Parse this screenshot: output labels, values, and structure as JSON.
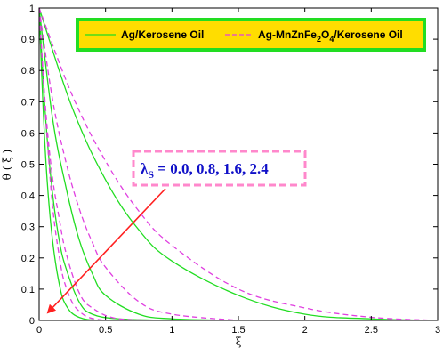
{
  "chart_data": {
    "type": "line",
    "xlabel": "ξ",
    "ylabel": "θ ( ξ )",
    "xlim": [
      0,
      3
    ],
    "ylim": [
      0,
      1
    ],
    "x_ticks": [
      "0",
      "0.5",
      "1",
      "1.5",
      "2",
      "2.5",
      "3"
    ],
    "y_ticks": [
      "0",
      "0.1",
      "0.2",
      "0.3",
      "0.4",
      "0.5",
      "0.6",
      "0.7",
      "0.8",
      "0.9",
      "1"
    ],
    "grid": false,
    "legend_position": "top",
    "legend": {
      "entry1": {
        "label": "Ag/Kerosene Oil",
        "color": "#22dd22",
        "style": "solid"
      },
      "entry2_parts": {
        "a": "Ag-MnZnFe",
        "b": "2",
        "c": "O",
        "d": "4",
        "e": "/Kerosene Oil"
      },
      "entry2_color": "#e040e0",
      "entry2_style": "dashed",
      "box_border_color": "#22dd22",
      "box_fill_color": "#ffdd00"
    },
    "annotation": {
      "symbol": "λ",
      "subscript": "S",
      "values_text": " = 0.0, 0.8, 1.6, 2.4",
      "arrow_color": "#ff2020",
      "box_border_color": "#ff88cc"
    },
    "series": [
      {
        "group": "Ag/Kerosene Oil",
        "color": "#22dd22",
        "style": "solid",
        "lambda_s": 0.0,
        "x": [
          0,
          0.25,
          0.5,
          0.75,
          1.0,
          1.5,
          2.0,
          2.5,
          3.0
        ],
        "y": [
          1.0,
          0.68,
          0.45,
          0.29,
          0.19,
          0.08,
          0.02,
          0.005,
          0.0
        ]
      },
      {
        "group": "Ag/Kerosene Oil",
        "color": "#22dd22",
        "style": "solid",
        "lambda_s": 0.8,
        "x": [
          0,
          0.1,
          0.2,
          0.3,
          0.4,
          0.5,
          0.75,
          1.0,
          1.5
        ],
        "y": [
          1.0,
          0.65,
          0.43,
          0.26,
          0.15,
          0.08,
          0.02,
          0.005,
          0.0
        ]
      },
      {
        "group": "Ag/Kerosene Oil",
        "color": "#22dd22",
        "style": "solid",
        "lambda_s": 1.6,
        "x": [
          0,
          0.05,
          0.1,
          0.15,
          0.2,
          0.3,
          0.4,
          0.6,
          1.0
        ],
        "y": [
          1.0,
          0.64,
          0.41,
          0.26,
          0.17,
          0.06,
          0.02,
          0.005,
          0.0
        ]
      },
      {
        "group": "Ag/Kerosene Oil",
        "color": "#22dd22",
        "style": "solid",
        "lambda_s": 2.4,
        "x": [
          0,
          0.03,
          0.06,
          0.1,
          0.15,
          0.2,
          0.3,
          0.5,
          1.0
        ],
        "y": [
          1.0,
          0.68,
          0.45,
          0.26,
          0.12,
          0.05,
          0.01,
          0.0,
          0.0
        ]
      },
      {
        "group": "Ag-MnZnFe2O4/Kerosene Oil",
        "color": "#e040e0",
        "style": "dashed",
        "lambda_s": 0.0,
        "x": [
          0,
          0.25,
          0.5,
          0.75,
          1.0,
          1.5,
          2.0,
          2.5,
          3.0
        ],
        "y": [
          1.0,
          0.72,
          0.51,
          0.35,
          0.24,
          0.1,
          0.04,
          0.01,
          0.0
        ]
      },
      {
        "group": "Ag-MnZnFe2O4/Kerosene Oil",
        "color": "#e040e0",
        "style": "dashed",
        "lambda_s": 0.8,
        "x": [
          0,
          0.1,
          0.2,
          0.3,
          0.4,
          0.5,
          0.75,
          1.0,
          1.5
        ],
        "y": [
          1.0,
          0.71,
          0.51,
          0.36,
          0.25,
          0.17,
          0.06,
          0.02,
          0.0
        ]
      },
      {
        "group": "Ag-MnZnFe2O4/Kerosene Oil",
        "color": "#e040e0",
        "style": "dashed",
        "lambda_s": 1.6,
        "x": [
          0,
          0.05,
          0.1,
          0.15,
          0.2,
          0.3,
          0.4,
          0.6,
          1.0
        ],
        "y": [
          1.0,
          0.67,
          0.46,
          0.33,
          0.22,
          0.09,
          0.04,
          0.005,
          0.0
        ]
      },
      {
        "group": "Ag-MnZnFe2O4/Kerosene Oil",
        "color": "#e040e0",
        "style": "dashed",
        "lambda_s": 2.4,
        "x": [
          0,
          0.03,
          0.06,
          0.1,
          0.15,
          0.2,
          0.3,
          0.5,
          1.0
        ],
        "y": [
          1.0,
          0.78,
          0.59,
          0.37,
          0.21,
          0.11,
          0.03,
          0.0,
          0.0
        ]
      }
    ]
  }
}
